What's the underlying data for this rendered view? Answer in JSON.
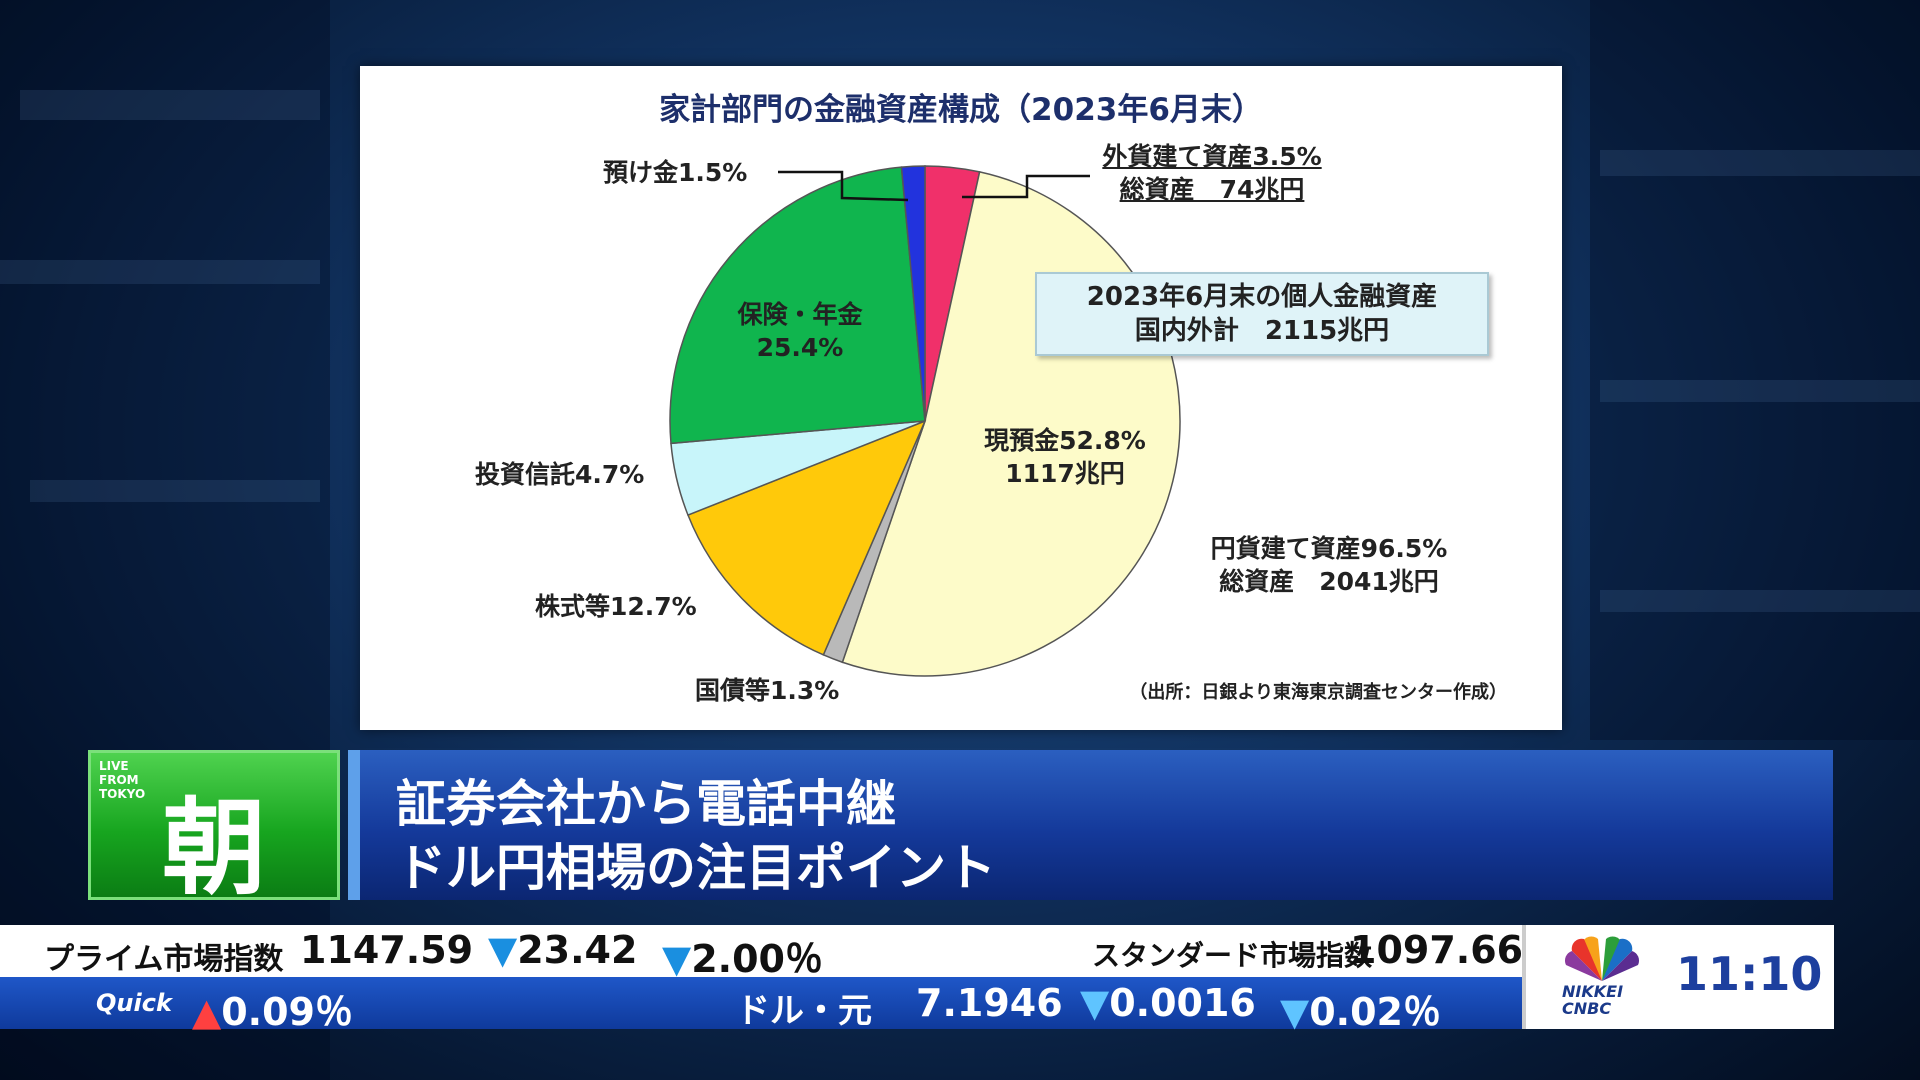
{
  "chart_data": {
    "type": "pie",
    "title": "家計部門の金融資産構成（2023年6月末）",
    "slices": [
      {
        "label": "外貨建て資産",
        "value": 3.5,
        "color": "#f0306a"
      },
      {
        "label": "現預金",
        "value": 52.8,
        "color": "#fdfbc9"
      },
      {
        "label": "国債等",
        "value": 1.3,
        "color": "#b9b9b9"
      },
      {
        "label": "株式等",
        "value": 12.7,
        "color": "#ffc90a"
      },
      {
        "label": "投資信託",
        "value": 4.7,
        "color": "#c8f5fa"
      },
      {
        "label": "保険・年金",
        "value": 25.4,
        "color": "#10b54e"
      },
      {
        "label": "預け金",
        "value": 1.5,
        "color": "#2233dd"
      }
    ],
    "labels": {
      "foreign_line1": "外貨建て資産3.5%",
      "foreign_line2": "総資産　74兆円",
      "deposit_line1": "現預金52.8%",
      "deposit_line2": "1117兆円",
      "yen_line1": "円貨建て資産96.5%",
      "yen_line2": "総資産　2041兆円",
      "bonds": "国債等1.3%",
      "stocks": "株式等12.7%",
      "funds": "投資信託4.7%",
      "insurance_line1": "保険・年金",
      "insurance_line2": "25.4%",
      "azuke": "預け金1.5%"
    },
    "info_box": {
      "line1": "2023年6月末の個人金融資産",
      "line2": "国内外計　2115兆円"
    },
    "source": "（出所：日銀より東海東京調査センター作成）"
  },
  "program": {
    "live_label": [
      "LIVE",
      "FROM",
      "TOKYO"
    ],
    "segment_char": "朝",
    "headline_line1": "証券会社から電話中継",
    "headline_line2": "ドル円相場の注目ポイント"
  },
  "ticker": {
    "prime_label": "プライム市場指数",
    "prime_value": "1147.59",
    "prime_change": "23.42",
    "prime_pct": "2.00％",
    "standard_label": "スタンダード市場指数",
    "standard_value": "1097.66",
    "quick_label": "Quick",
    "quick_value": "0.09％",
    "pair_label": "ドル・元",
    "pair_value": "7.1946",
    "pair_change": "0.0016",
    "pair_pct": "0.02％"
  },
  "branding": {
    "logo_line1": "NIKKEI",
    "logo_line2": "CNBC",
    "clock": "11:10"
  }
}
